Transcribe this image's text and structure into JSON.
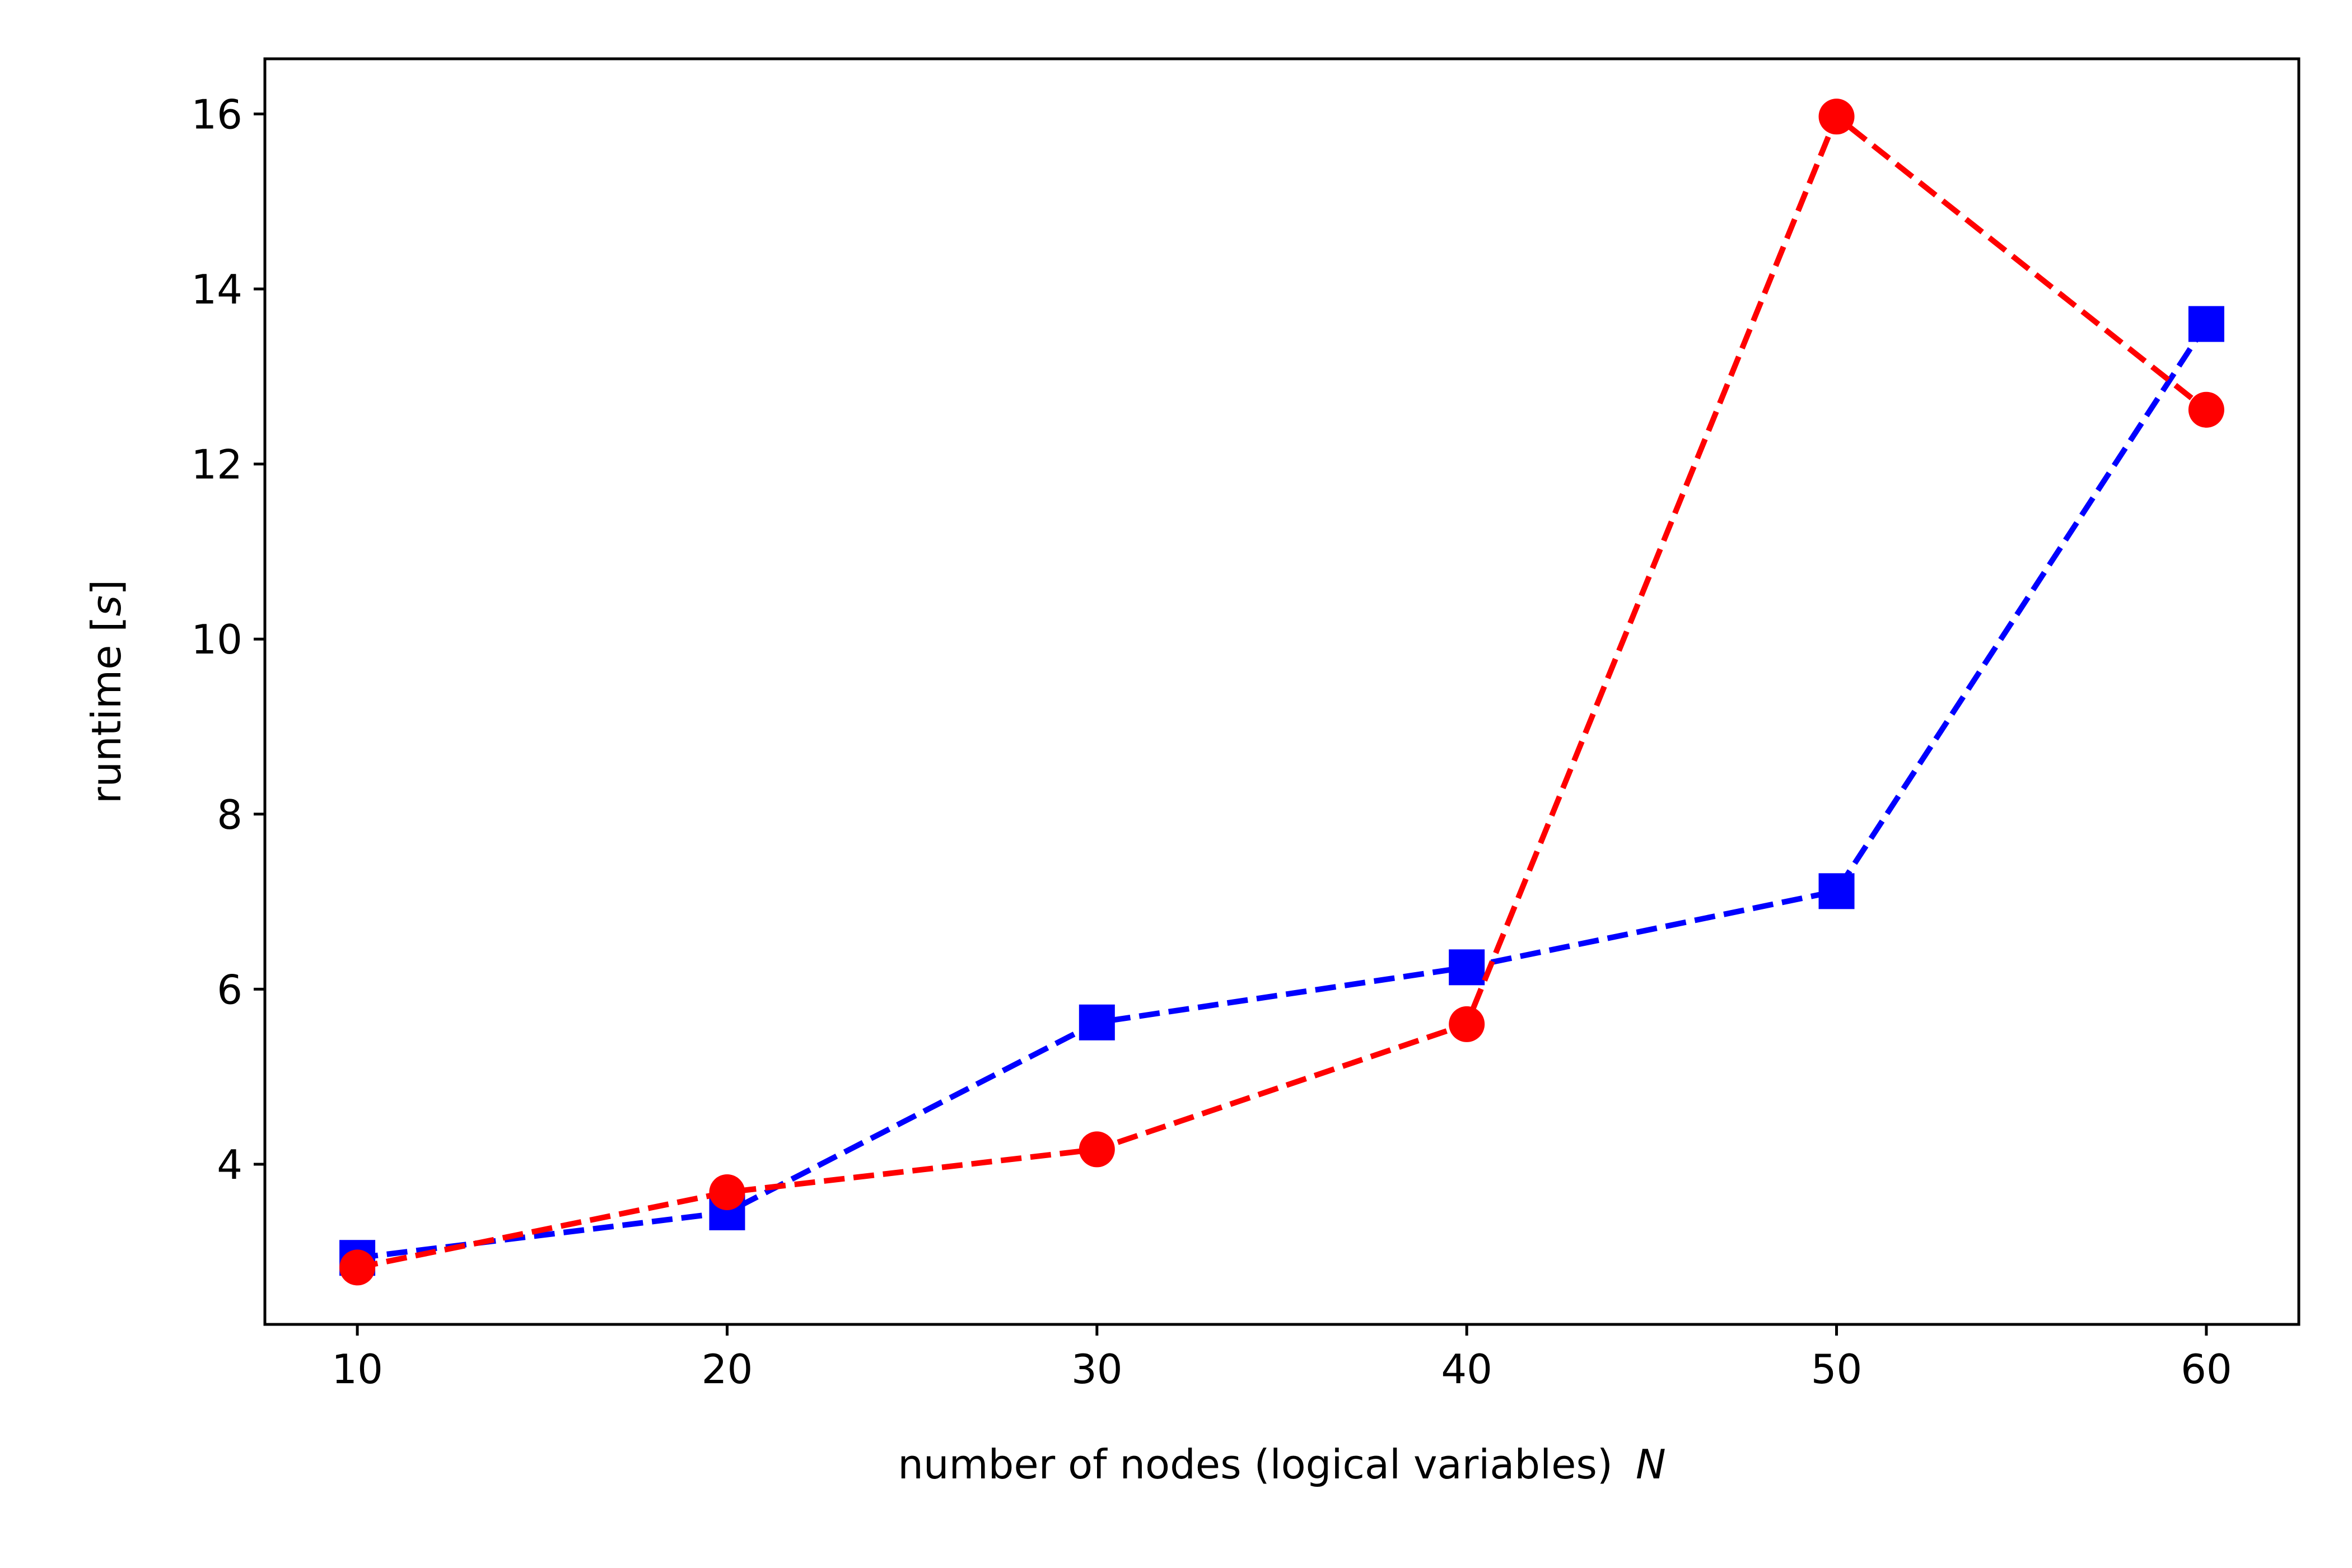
{
  "chart_data": {
    "type": "line",
    "title": "",
    "xlabel": "number of nodes (logical variables)",
    "xlabel_symbol": "N",
    "ylabel": "runtime [",
    "ylabel_symbol": "s",
    "ylabel_suffix": "]",
    "xlim": [
      7.5,
      62.5
    ],
    "ylim": [
      2.17,
      16.63
    ],
    "x_ticks": [
      10,
      20,
      30,
      40,
      50,
      60
    ],
    "y_ticks": [
      4,
      6,
      8,
      10,
      12,
      14,
      16
    ],
    "grid": false,
    "legend": "none",
    "series": [
      {
        "color": "#0000ff",
        "marker": "square",
        "line_style": "dashed",
        "x": [
          10,
          20,
          30,
          40,
          50,
          60
        ],
        "y": [
          2.93,
          3.45,
          5.62,
          6.25,
          7.12,
          13.6
        ]
      },
      {
        "color": "#ff0000",
        "marker": "circle",
        "line_style": "dashed",
        "x": [
          10,
          20,
          30,
          40,
          50,
          60
        ],
        "y": [
          2.82,
          3.68,
          4.17,
          5.6,
          15.97,
          12.62
        ]
      }
    ]
  }
}
